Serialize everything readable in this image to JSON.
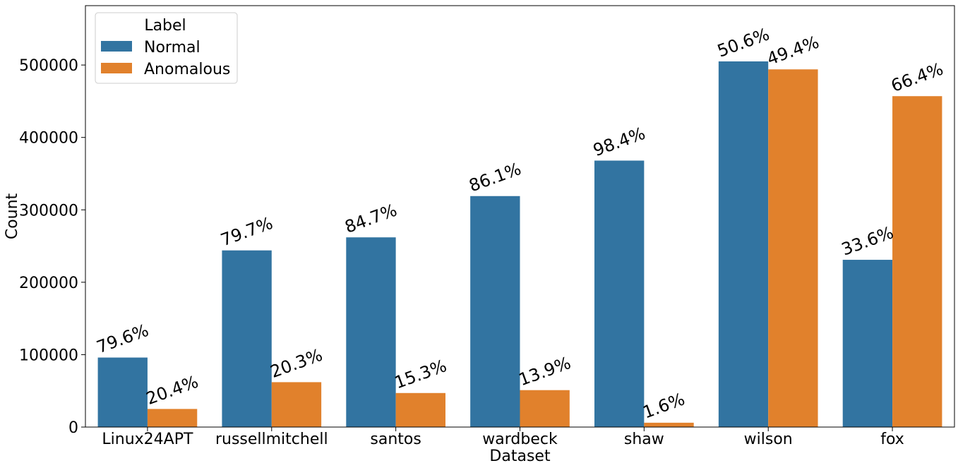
{
  "chart_data": {
    "type": "bar",
    "xlabel": "Dataset",
    "ylabel": "Count",
    "categories": [
      "Linux24APT",
      "russellmitchell",
      "santos",
      "wardbeck",
      "shaw",
      "wilson",
      "fox"
    ],
    "series": [
      {
        "name": "Normal",
        "color": "#3274a1",
        "values": [
          96000,
          244000,
          262000,
          319000,
          368000,
          505000,
          231000
        ],
        "labels": [
          "79.6%",
          "79.7%",
          "84.7%",
          "86.1%",
          "98.4%",
          "50.6%",
          "33.6%"
        ]
      },
      {
        "name": "Anomalous",
        "color": "#e1812c",
        "values": [
          25000,
          62000,
          47000,
          51000,
          6000,
          494000,
          457000
        ],
        "labels": [
          "20.4%",
          "20.3%",
          "15.3%",
          "13.9%",
          "1.6%",
          "49.4%",
          "66.4%"
        ]
      }
    ],
    "ylim": [
      0,
      582000
    ],
    "yticks": [
      0,
      100000,
      200000,
      300000,
      400000,
      500000
    ],
    "ytick_labels": [
      "0",
      "100000",
      "200000",
      "300000",
      "400000",
      "500000"
    ],
    "legend": {
      "title": "Label",
      "position": "top-left"
    },
    "grid": false
  }
}
